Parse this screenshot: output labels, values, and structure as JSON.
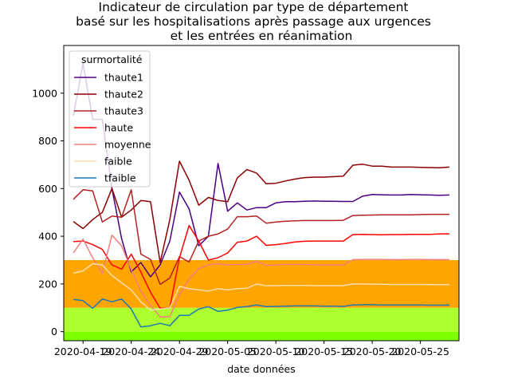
{
  "chart_data": {
    "type": "line",
    "title_lines": [
      "Indicateur de circulation par type de département",
      "basé sur les hospitalisations après passage aux urgences",
      "et les entrées en réanimation"
    ],
    "xlabel": "date données",
    "ylabel": "",
    "x_tick_labels": [
      "2020-04-19",
      "2020-04-24",
      "2020-04-29",
      "2020-05-05",
      "2020-05-10",
      "2020-05-15",
      "2020-05-20",
      "2020-05-25"
    ],
    "x_tick_dates": [
      "2020-04-19",
      "2020-04-24",
      "2020-04-29",
      "2020-05-04",
      "2020-05-09",
      "2020-05-14",
      "2020-05-19",
      "2020-05-24"
    ],
    "xlim": [
      "2020-04-17",
      "2020-05-28"
    ],
    "y_ticks": [
      0,
      200,
      400,
      600,
      800,
      1000
    ],
    "ylim": [
      -38,
      1200
    ],
    "bands": [
      {
        "from": -38,
        "to": 0,
        "color": "#7fff00"
      },
      {
        "from": 0,
        "to": 100,
        "color": "#adff2f"
      },
      {
        "from": 100,
        "to": 300,
        "color": "#ffa500"
      }
    ],
    "legend": {
      "title": "surmortalité",
      "location": "upper-left"
    },
    "x": [
      "2020-04-18",
      "2020-04-19",
      "2020-04-20",
      "2020-04-21",
      "2020-04-22",
      "2020-04-23",
      "2020-04-24",
      "2020-04-25",
      "2020-04-26",
      "2020-04-27",
      "2020-04-28",
      "2020-04-29",
      "2020-04-30",
      "2020-05-01",
      "2020-05-02",
      "2020-05-03",
      "2020-05-04",
      "2020-05-05",
      "2020-05-06",
      "2020-05-07",
      "2020-05-08",
      "2020-05-09",
      "2020-05-10",
      "2020-05-11",
      "2020-05-12",
      "2020-05-13",
      "2020-05-14",
      "2020-05-15",
      "2020-05-16",
      "2020-05-17",
      "2020-05-18",
      "2020-05-19",
      "2020-05-20",
      "2020-05-21",
      "2020-05-22",
      "2020-05-23",
      "2020-05-24",
      "2020-05-25",
      "2020-05-26",
      "2020-05-27"
    ],
    "series": [
      {
        "name": "thaute1",
        "color": "#4b0082",
        "values": [
          905,
          1125,
          890,
          890,
          600,
          390,
          250,
          290,
          230,
          280,
          380,
          585,
          515,
          360,
          400,
          705,
          505,
          540,
          510,
          520,
          520,
          540,
          545,
          545,
          547,
          548,
          547,
          547,
          546,
          546,
          568,
          575,
          574,
          573,
          573,
          575,
          574,
          573,
          572,
          573
        ]
      },
      {
        "name": "thaute2",
        "color": "#8b0000",
        "values": [
          462,
          432,
          470,
          500,
          600,
          480,
          510,
          550,
          545,
          290,
          470,
          715,
          635,
          530,
          563,
          550,
          545,
          645,
          680,
          665,
          620,
          622,
          632,
          640,
          646,
          648,
          648,
          650,
          652,
          698,
          702,
          694,
          694,
          690,
          690,
          690,
          689,
          688,
          687,
          690
        ]
      },
      {
        "name": "thaute3",
        "color": "#b22222",
        "values": [
          555,
          595,
          590,
          460,
          485,
          480,
          595,
          325,
          303,
          198,
          225,
          315,
          292,
          380,
          400,
          410,
          430,
          482,
          482,
          485,
          455,
          460,
          463,
          465,
          466,
          466,
          466,
          466,
          467,
          487,
          488,
          489,
          490,
          490,
          490,
          490,
          491,
          492,
          492,
          492
        ]
      },
      {
        "name": "haute",
        "color": "#ff0000",
        "values": [
          378,
          380,
          365,
          345,
          280,
          262,
          325,
          250,
          165,
          98,
          100,
          310,
          445,
          380,
          300,
          310,
          330,
          375,
          380,
          400,
          362,
          365,
          370,
          376,
          379,
          380,
          380,
          380,
          380,
          407,
          408,
          407,
          406,
          407,
          407,
          408,
          408,
          408,
          410,
          410
        ]
      },
      {
        "name": "moyenne",
        "color": "#f08080",
        "values": [
          330,
          388,
          310,
          245,
          405,
          360,
          260,
          170,
          110,
          62,
          62,
          155,
          220,
          265,
          280,
          285,
          280,
          282,
          282,
          295,
          278,
          280,
          282,
          282,
          282,
          281,
          280,
          280,
          280,
          302,
          303,
          303,
          303,
          302,
          302,
          303,
          303,
          302,
          302,
          302
        ]
      },
      {
        "name": "faible",
        "color": "#ffdead",
        "values": [
          245,
          255,
          285,
          280,
          235,
          205,
          175,
          125,
          90,
          95,
          100,
          190,
          180,
          175,
          170,
          180,
          175,
          180,
          182,
          200,
          192,
          193,
          194,
          194,
          194,
          193,
          193,
          193,
          193,
          200,
          200,
          199,
          199,
          198,
          198,
          198,
          198,
          197,
          197,
          197
        ]
      },
      {
        "name": "tfaible",
        "color": "#1f77b4",
        "values": [
          135,
          130,
          98,
          137,
          125,
          137,
          95,
          20,
          25,
          35,
          25,
          68,
          68,
          95,
          105,
          85,
          90,
          102,
          105,
          112,
          105,
          106,
          107,
          108,
          108,
          108,
          107,
          107,
          106,
          112,
          113,
          113,
          112,
          112,
          112,
          112,
          112,
          111,
          111,
          111
        ]
      }
    ]
  }
}
